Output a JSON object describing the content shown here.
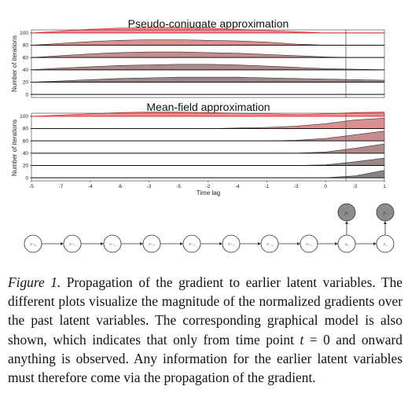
{
  "chart_data": [
    {
      "type": "area",
      "title": "Pseudo-conjugate approximation",
      "xlabel": "",
      "ylabel": "Number of iterations",
      "xlim": [
        -5,
        1
      ],
      "ylim": [
        -5,
        105
      ],
      "yticks": [
        "0",
        "20",
        "40",
        "60",
        "80",
        "100"
      ],
      "grid": false,
      "vline_x": 0,
      "colors": {
        "high": "#ef8080",
        "low": "#6e6e6e",
        "line": "#111111",
        "topline": "#e02020"
      },
      "series": [
        {
          "baseline": 100,
          "values_x": [
            -5,
            -4.5,
            -4,
            -3.5,
            -3,
            -2.5,
            -2,
            -1.5,
            -1,
            -0.5,
            0,
            0.5,
            1
          ],
          "heights": [
            0,
            3,
            6,
            8,
            9,
            9,
            8,
            6,
            4,
            2,
            0,
            0,
            0
          ]
        },
        {
          "baseline": 80,
          "values_x": [
            -5,
            -4.5,
            -4,
            -3.5,
            -3,
            -2.5,
            -2,
            -1.5,
            -1,
            -0.5,
            0,
            0.5,
            1
          ],
          "heights": [
            0,
            3,
            6,
            8,
            9,
            9,
            8,
            7,
            5,
            2,
            0,
            0,
            0
          ]
        },
        {
          "baseline": 60,
          "values_x": [
            -5,
            -4.5,
            -4,
            -3.5,
            -3,
            -2.5,
            -2,
            -1.5,
            -1,
            -0.5,
            0,
            0.5,
            1
          ],
          "heights": [
            0,
            3,
            6,
            8,
            9,
            9,
            8,
            7,
            5,
            3,
            1,
            0,
            0
          ]
        },
        {
          "baseline": 40,
          "values_x": [
            -5,
            -4.5,
            -4,
            -3.5,
            -3,
            -2.5,
            -2,
            -1.5,
            -1,
            -0.5,
            0,
            0.5,
            1
          ],
          "heights": [
            0,
            3,
            5,
            7,
            8,
            9,
            9,
            8,
            6,
            4,
            2,
            1,
            0
          ]
        },
        {
          "baseline": 20,
          "values_x": [
            -5,
            -4.5,
            -4,
            -3.5,
            -3,
            -2.5,
            -2,
            -1.5,
            -1,
            -0.5,
            0,
            0.5,
            1
          ],
          "heights": [
            0,
            2,
            4,
            6,
            7,
            8,
            8,
            8,
            7,
            6,
            5,
            4,
            3
          ]
        },
        {
          "baseline": 0,
          "values_x": [
            -5,
            -4.5,
            -4,
            -3.5,
            -3,
            -2.5,
            -2,
            -1.5,
            -1,
            -0.5,
            0,
            0.5,
            1
          ],
          "heights": [
            0,
            0,
            0,
            0,
            0,
            0,
            0,
            0,
            0,
            0,
            0,
            0,
            0
          ]
        }
      ]
    },
    {
      "type": "area",
      "title": "Mean-field approximation",
      "xlabel": "Time lag",
      "ylabel": "Number of iterations",
      "xlim": [
        -5,
        1
      ],
      "ylim": [
        -5,
        105
      ],
      "yticks": [
        "0",
        "20",
        "40",
        "60",
        "80",
        "100"
      ],
      "xticks": [
        "-5",
        "-4",
        "-3",
        "-2",
        "-1",
        "0",
        "1"
      ],
      "xtick_minor": [
        "-7",
        "-6",
        "-5",
        "-4",
        "-3",
        "-2",
        "-1"
      ],
      "grid": false,
      "vline_x": 0,
      "colors": {
        "high": "#ef8080",
        "low": "#6e6e6e",
        "line": "#111111",
        "topline": "#e02020"
      },
      "series": [
        {
          "baseline": 100,
          "values_x": [
            -5,
            -4.5,
            -4,
            -3.5,
            -3,
            -2.5,
            -2,
            -1.5,
            -1,
            -0.5,
            0,
            0.5,
            1
          ],
          "heights": [
            0,
            2,
            4,
            6,
            7,
            7,
            6,
            5,
            4,
            3,
            4,
            6,
            7
          ]
        },
        {
          "baseline": 80,
          "values_x": [
            -5,
            -4.5,
            -4,
            -3.5,
            -3,
            -2.5,
            -2,
            -1.5,
            -1,
            -0.5,
            0,
            0.5,
            1
          ],
          "heights": [
            0,
            0,
            0,
            0,
            0,
            0,
            0,
            1,
            2,
            4,
            8,
            14,
            17
          ]
        },
        {
          "baseline": 60,
          "values_x": [
            -5,
            -4.5,
            -4,
            -3.5,
            -3,
            -2.5,
            -2,
            -1.5,
            -1,
            -0.5,
            0,
            0.5,
            1
          ],
          "heights": [
            0,
            0,
            0,
            0,
            0,
            0,
            0,
            0,
            0,
            1,
            4,
            10,
            16
          ]
        },
        {
          "baseline": 40,
          "values_x": [
            -5,
            -4.5,
            -4,
            -3.5,
            -3,
            -2.5,
            -2,
            -1.5,
            -1,
            -0.5,
            0,
            0.5,
            1
          ],
          "heights": [
            0,
            0,
            0,
            0,
            0,
            0,
            0,
            0,
            0,
            0,
            2,
            8,
            15
          ]
        },
        {
          "baseline": 20,
          "values_x": [
            -5,
            -4.5,
            -4,
            -3.5,
            -3,
            -2.5,
            -2,
            -1.5,
            -1,
            -0.5,
            0,
            0.5,
            1
          ],
          "heights": [
            0,
            0,
            0,
            0,
            0,
            0,
            0,
            0,
            0,
            0,
            1,
            6,
            12
          ]
        },
        {
          "baseline": 0,
          "values_x": [
            -5,
            -4.5,
            -4,
            -3.5,
            -3,
            -2.5,
            -2,
            -1.5,
            -1,
            -0.5,
            0,
            0.5,
            1
          ],
          "heights": [
            0,
            0,
            0,
            0,
            0,
            0,
            0,
            0,
            0,
            0,
            0,
            3,
            12
          ]
        }
      ]
    }
  ],
  "graphical_model": {
    "latent_nodes": [
      "s₋₈",
      "s₋₇",
      "s₋₆",
      "s₋₅",
      "s₋₄",
      "s₋₃",
      "s₋₂",
      "s₋₁",
      "s₀",
      "s₁"
    ],
    "observed_nodes": [
      "y₀",
      "y₁"
    ],
    "colors": {
      "latent_fill": "#ffffff",
      "observed_fill": "#8c8c8c",
      "stroke": "#333333"
    }
  },
  "caption": {
    "label": "Figure 1.",
    "part1": " Propagation of the gradient to earlier latent variables. The different plots visualize the magnitude of the normalized gradients over the past latent variables. The corresponding graphical model is also shown, which indicates that only from time point ",
    "math": "t",
    "part2": " = 0 and onward anything is observed. Any information for the earlier latent variables must therefore come via the propagation of the gradient."
  }
}
